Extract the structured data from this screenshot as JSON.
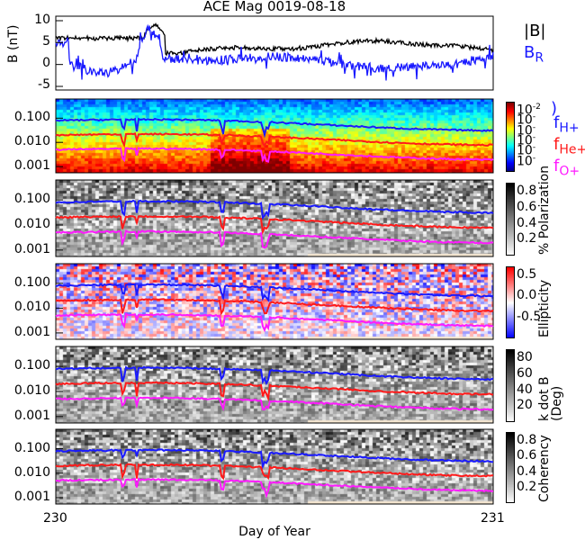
{
  "title": "ACE Mag 0019-08-18",
  "xaxis": {
    "label": "Day of Year",
    "ticks": [
      "230",
      "231"
    ],
    "range": [
      230,
      231
    ]
  },
  "colors": {
    "B": "#000000",
    "BR": "#1a1aff",
    "fH": "#1a1aff",
    "fHe": "#ff1a1a",
    "fO": "#ff1aff"
  },
  "top_panel": {
    "ylabel": "B",
    "yunit": "(nT)",
    "yticks": [
      "10",
      "5",
      "0",
      "-5"
    ],
    "legend_b": "|B|",
    "legend_br": "B",
    "legend_br_sub": "R"
  },
  "freq_ticks": [
    "0.100",
    "0.010",
    "0.001"
  ],
  "legend": {
    "fH": "f",
    "fH_sub": "H+",
    "fHe": "f",
    "fHe_sub": "He+",
    "fO": "f",
    "fO_sub": "O+",
    "paren": ")"
  },
  "panels": [
    {
      "name": "power",
      "colorbar_ticks": [
        "10",
        "10",
        "10",
        "10",
        "10",
        "10"
      ],
      "colorbar_exps": [
        "-2",
        "-",
        "-",
        "-",
        "-",
        "-"
      ]
    },
    {
      "name": "polarization",
      "label": "% Polarization",
      "colorbar_ticks": [
        "0.8",
        "0.6",
        "0.4",
        "0.2"
      ]
    },
    {
      "name": "ellipticity",
      "label": "Ellipticity",
      "colorbar_ticks": [
        "0.5",
        "0.0",
        "-0.5"
      ]
    },
    {
      "name": "kdotb",
      "label": "k dot B",
      "label2": "(Deg)",
      "colorbar_ticks": [
        "80",
        "60",
        "40",
        "20"
      ]
    },
    {
      "name": "coherency",
      "label": "Coherency",
      "colorbar_ticks": [
        "0.8",
        "0.6",
        "0.4",
        "0.2"
      ]
    }
  ],
  "chart_data": {
    "type": "line",
    "title": "ACE Mag 0019-08-18",
    "xlabel": "Day of Year",
    "xlim": [
      230,
      231
    ],
    "series": [
      {
        "name": "|B|",
        "panel": "top",
        "x": [
          230.0,
          230.1,
          230.2,
          230.25,
          230.3,
          230.5,
          230.7,
          230.9,
          231.0
        ],
        "y": [
          6,
          6,
          9,
          7,
          4,
          3,
          3,
          4,
          2
        ]
      },
      {
        "name": "B_R",
        "panel": "top",
        "x": [
          230.0,
          230.05,
          230.12,
          230.2,
          230.25,
          230.3,
          230.5,
          230.7,
          230.9,
          231.0
        ],
        "y": [
          5,
          0,
          -4,
          9,
          2,
          1,
          -1,
          -2,
          -3,
          1
        ]
      },
      {
        "name": "f_H+",
        "panel": "spectra",
        "x": [
          230.0,
          230.3,
          230.5,
          230.7,
          231.0
        ],
        "y": [
          0.08,
          0.1,
          0.06,
          0.06,
          0.035
        ]
      },
      {
        "name": "f_He+",
        "panel": "spectra",
        "x": [
          230.0,
          230.3,
          230.5,
          230.7,
          231.0
        ],
        "y": [
          0.02,
          0.025,
          0.015,
          0.015,
          0.009
        ]
      },
      {
        "name": "f_O+",
        "panel": "spectra",
        "x": [
          230.0,
          230.3,
          230.5,
          230.7,
          231.0
        ],
        "y": [
          0.005,
          0.006,
          0.004,
          0.004,
          0.0023
        ]
      }
    ],
    "ylim_top": [
      -6,
      10
    ],
    "ylim_freq": [
      0.0005,
      0.3
    ]
  }
}
